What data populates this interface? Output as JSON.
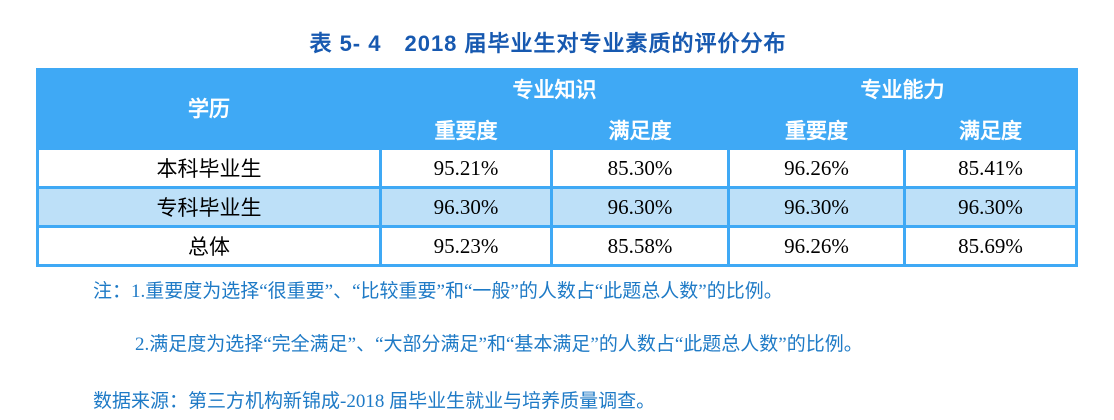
{
  "title": "表 5- 4　2018 届毕业生对专业素质的评价分布",
  "table": {
    "header": {
      "degree": "学历",
      "group_knowledge": "专业知识",
      "group_ability": "专业能力",
      "sub_importance_1": "重要度",
      "sub_satisfaction_1": "满足度",
      "sub_importance_2": "重要度",
      "sub_satisfaction_2": "满足度"
    },
    "rows": [
      {
        "label": "本科毕业生",
        "values": [
          "95.21%",
          "85.30%",
          "96.26%",
          "85.41%"
        ]
      },
      {
        "label": "专科毕业生",
        "values": [
          "96.30%",
          "96.30%",
          "96.30%",
          "96.30%"
        ]
      },
      {
        "label": "总体",
        "values": [
          "95.23%",
          "85.58%",
          "96.26%",
          "85.69%"
        ]
      }
    ]
  },
  "notes": {
    "note1": "注：1.重要度为选择“很重要”、“比较重要”和“一般”的人数占“此题总人数”的比例。",
    "note2": "2.满足度为选择“完全满足”、“大部分满足”和“基本满足”的人数占“此题总人数”的比例。",
    "source": "数据来源：第三方机构新锦成-2018 届毕业生就业与培养质量调查。"
  },
  "colors": {
    "header_blue": "#3FA9F5",
    "row_stripe_blue": "#BDE0F8",
    "title_blue": "#1759B0",
    "note_blue": "#1E7AC6"
  }
}
